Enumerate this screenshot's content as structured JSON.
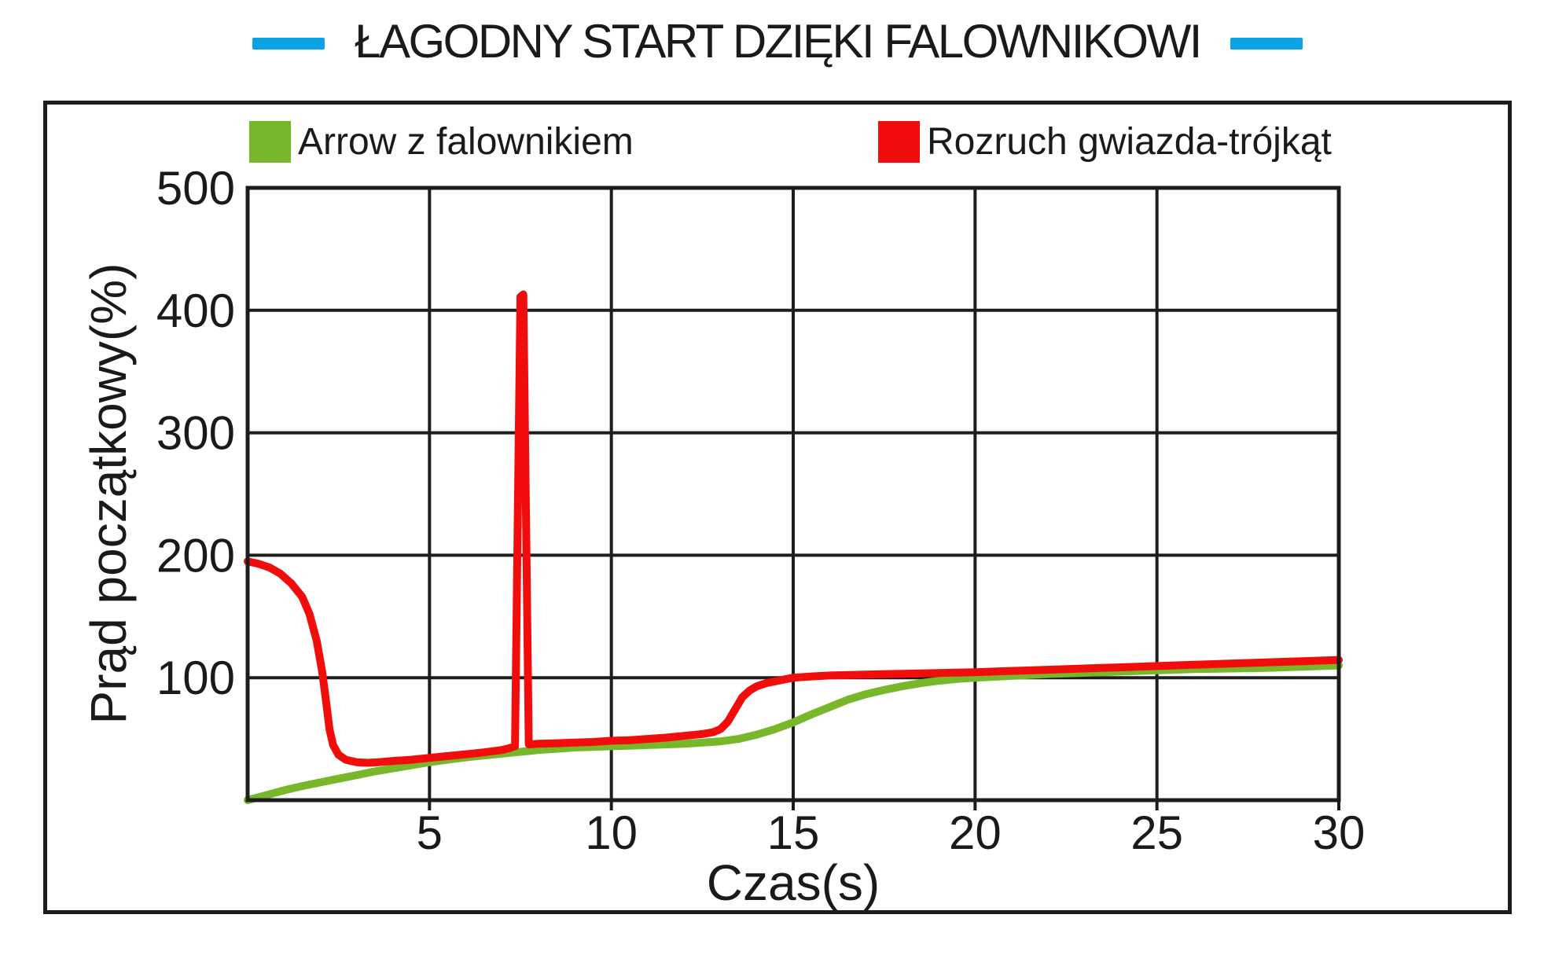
{
  "title": "ŁAGODNY START DZIĘKI FALOWNIKOWI",
  "colors": {
    "accent_blue": "#0aa3e3",
    "grid_black": "#1d1d1b",
    "text_black": "#1a1a1a",
    "series_green": "#77b82b",
    "series_red": "#f20d0d"
  },
  "chart_data": {
    "type": "line",
    "title": "ŁAGODNY START DZIĘKI FALOWNIKOWI",
    "xlabel": "Czas(s)",
    "ylabel": "Prąd początkowy(%)",
    "xlim": [
      0,
      30
    ],
    "ylim": [
      0,
      500
    ],
    "xticks": [
      5,
      10,
      15,
      20,
      25,
      30
    ],
    "yticks": [
      100,
      200,
      300,
      400,
      500
    ],
    "grid": true,
    "legend_position": "top",
    "series": [
      {
        "name": "Arrow z falownikiem",
        "color": "#77b82b",
        "points": [
          [
            0,
            0
          ],
          [
            0.5,
            4
          ],
          [
            1,
            8
          ],
          [
            1.5,
            11.5
          ],
          [
            2,
            14.5
          ],
          [
            2.5,
            17.5
          ],
          [
            3,
            20.5
          ],
          [
            3.5,
            23.5
          ],
          [
            4,
            26
          ],
          [
            4.5,
            28.5
          ],
          [
            5,
            31
          ],
          [
            5.5,
            33
          ],
          [
            6,
            35
          ],
          [
            6.5,
            36.5
          ],
          [
            7,
            38
          ],
          [
            7.5,
            39.5
          ],
          [
            8,
            41
          ],
          [
            8.5,
            42
          ],
          [
            9,
            43
          ],
          [
            9.5,
            43.5
          ],
          [
            10,
            44
          ],
          [
            10.5,
            44.5
          ],
          [
            11,
            45
          ],
          [
            11.5,
            45.5
          ],
          [
            12,
            46
          ],
          [
            12.5,
            47
          ],
          [
            13,
            48
          ],
          [
            13.5,
            50
          ],
          [
            14,
            53.5
          ],
          [
            14.5,
            58
          ],
          [
            15,
            63.5
          ],
          [
            15.5,
            70
          ],
          [
            16,
            76
          ],
          [
            16.5,
            82
          ],
          [
            17,
            86.5
          ],
          [
            17.5,
            90
          ],
          [
            18,
            93
          ],
          [
            18.5,
            95.5
          ],
          [
            19,
            97.5
          ],
          [
            19.5,
            99
          ],
          [
            20,
            100
          ],
          [
            21,
            101.5
          ],
          [
            22,
            103
          ],
          [
            23,
            104
          ],
          [
            24,
            105
          ],
          [
            25,
            106
          ],
          [
            26,
            107
          ],
          [
            27,
            107.5
          ],
          [
            28,
            108
          ],
          [
            29,
            109
          ],
          [
            30,
            110
          ]
        ]
      },
      {
        "name": "Rozruch gwiazda-trójkąt",
        "color": "#f20d0d",
        "points": [
          [
            0,
            195
          ],
          [
            0.3,
            193
          ],
          [
            0.6,
            190
          ],
          [
            0.9,
            185
          ],
          [
            1.2,
            177
          ],
          [
            1.5,
            166
          ],
          [
            1.7,
            152
          ],
          [
            1.9,
            130
          ],
          [
            2.05,
            105
          ],
          [
            2.15,
            82
          ],
          [
            2.25,
            58
          ],
          [
            2.35,
            45
          ],
          [
            2.5,
            37
          ],
          [
            2.7,
            33
          ],
          [
            3,
            31
          ],
          [
            3.3,
            30.5
          ],
          [
            3.6,
            31
          ],
          [
            4,
            32
          ],
          [
            4.5,
            33
          ],
          [
            5,
            34.5
          ],
          [
            5.5,
            36
          ],
          [
            6,
            37.5
          ],
          [
            6.5,
            39
          ],
          [
            7,
            41
          ],
          [
            7.2,
            42.5
          ],
          [
            7.35,
            44
          ],
          [
            7.5,
            411
          ],
          [
            7.58,
            413
          ],
          [
            7.73,
            45.5
          ],
          [
            8,
            46
          ],
          [
            8.5,
            46.5
          ],
          [
            9,
            47
          ],
          [
            9.5,
            47.5
          ],
          [
            10,
            48.5
          ],
          [
            10.5,
            49
          ],
          [
            11,
            50
          ],
          [
            11.5,
            51
          ],
          [
            12,
            52.5
          ],
          [
            12.5,
            54
          ],
          [
            12.8,
            55.5
          ],
          [
            13,
            58
          ],
          [
            13.2,
            64
          ],
          [
            13.4,
            74
          ],
          [
            13.6,
            84
          ],
          [
            13.8,
            89.5
          ],
          [
            14,
            93
          ],
          [
            14.25,
            95.5
          ],
          [
            14.5,
            97
          ],
          [
            14.75,
            98.5
          ],
          [
            15,
            100
          ],
          [
            15.5,
            101
          ],
          [
            16,
            101.8
          ],
          [
            17,
            102.5
          ],
          [
            18,
            103.2
          ],
          [
            19,
            103.8
          ],
          [
            20,
            104.5
          ],
          [
            21,
            105.5
          ],
          [
            22,
            106.5
          ],
          [
            23,
            107.5
          ],
          [
            24,
            108.5
          ],
          [
            25,
            109.5
          ],
          [
            26,
            110.5
          ],
          [
            27,
            111.5
          ],
          [
            28,
            112.5
          ],
          [
            29,
            113.5
          ],
          [
            30,
            114.5
          ]
        ]
      }
    ]
  }
}
